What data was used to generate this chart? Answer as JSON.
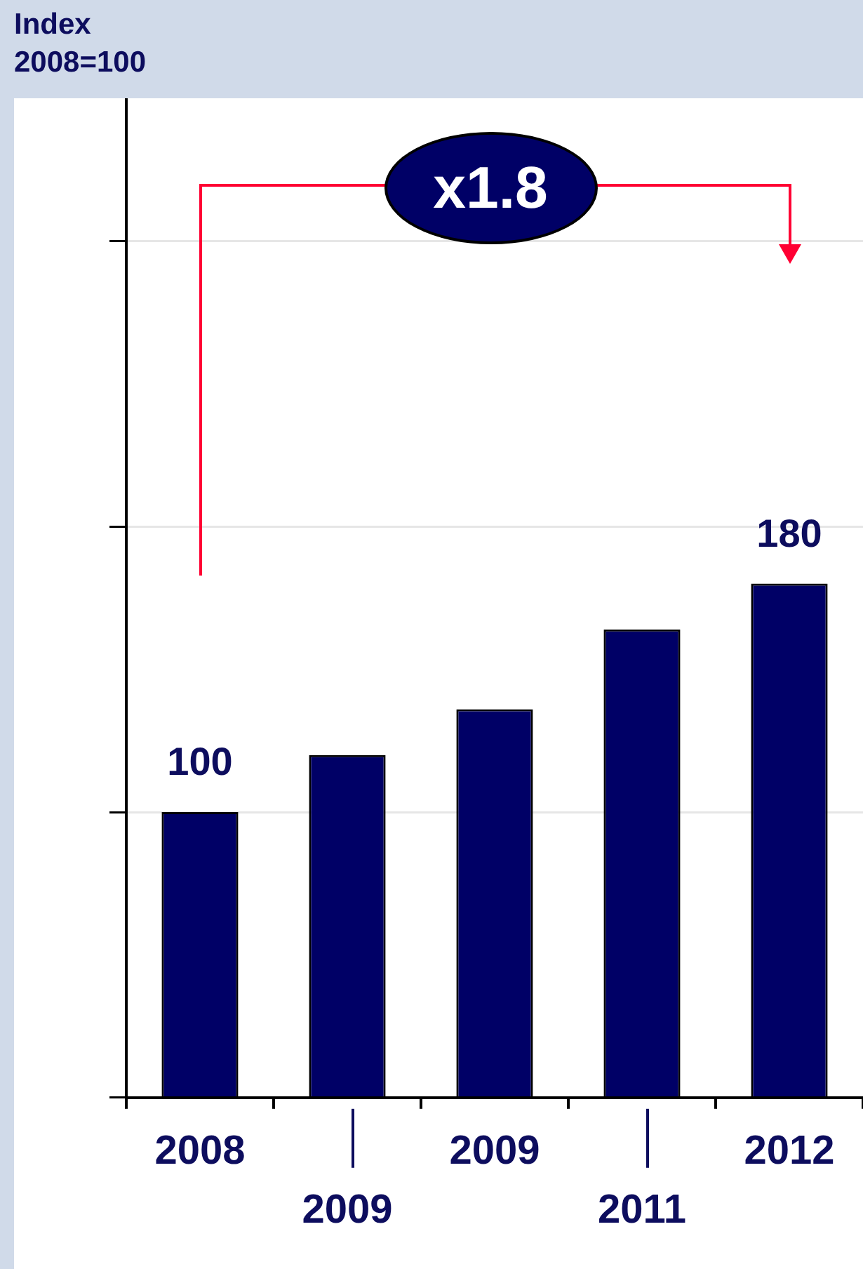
{
  "chart_data": {
    "type": "bar",
    "ylabel": "Index\n2008=100",
    "categories": [
      "2008",
      "2009",
      "2009",
      "2011",
      "2012"
    ],
    "values": [
      100,
      120,
      136,
      164,
      180
    ],
    "value_labels": [
      "100",
      null,
      null,
      null,
      "180"
    ],
    "color": "#000066",
    "ylim": [
      0,
      350
    ],
    "yticks": [
      {
        "value": 0,
        "label": null
      },
      {
        "value": 100,
        "label": null
      },
      {
        "value": 200,
        "label": null
      },
      {
        "value": 300,
        "label": null
      }
    ],
    "tick_labels": "x",
    "grid": "y",
    "legend": false,
    "annotations": [
      "x1.8"
    ]
  }
}
